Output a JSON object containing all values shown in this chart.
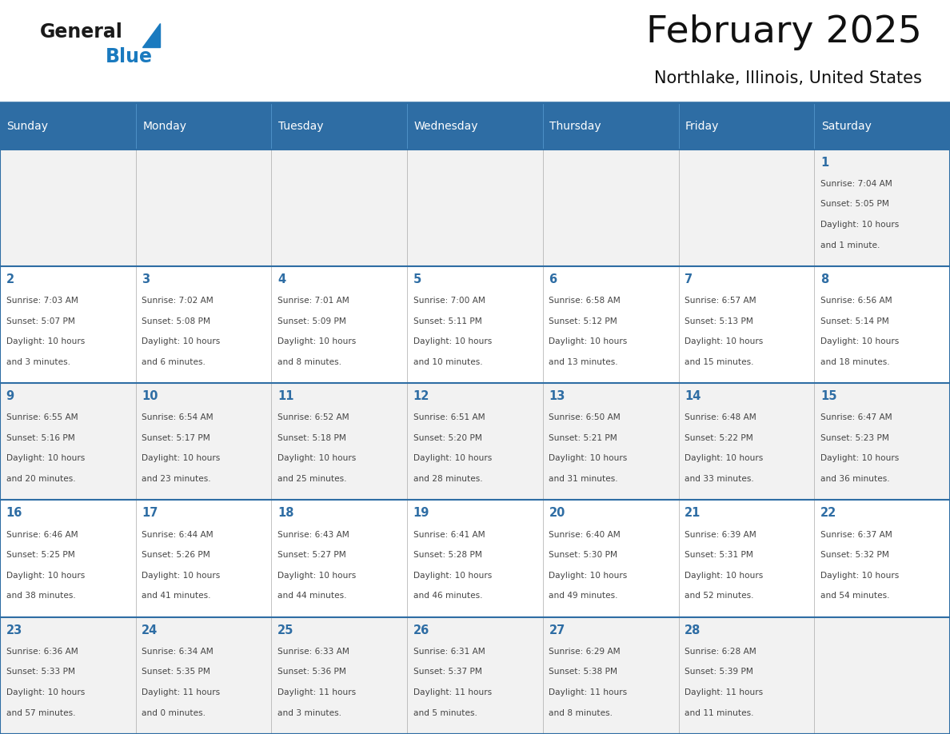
{
  "title": "February 2025",
  "subtitle": "Northlake, Illinois, United States",
  "header_bg": "#2E6DA4",
  "header_text_color": "#FFFFFF",
  "cell_bg_odd": "#F2F2F2",
  "cell_bg_even": "#FFFFFF",
  "day_number_color": "#2E6DA4",
  "info_text_color": "#444444",
  "border_color": "#2E6DA4",
  "grid_line_color": "#AAAAAA",
  "days_of_week": [
    "Sunday",
    "Monday",
    "Tuesday",
    "Wednesday",
    "Thursday",
    "Friday",
    "Saturday"
  ],
  "weeks": [
    [
      {
        "day": "",
        "info": ""
      },
      {
        "day": "",
        "info": ""
      },
      {
        "day": "",
        "info": ""
      },
      {
        "day": "",
        "info": ""
      },
      {
        "day": "",
        "info": ""
      },
      {
        "day": "",
        "info": ""
      },
      {
        "day": "1",
        "info": "Sunrise: 7:04 AM\nSunset: 5:05 PM\nDaylight: 10 hours\nand 1 minute."
      }
    ],
    [
      {
        "day": "2",
        "info": "Sunrise: 7:03 AM\nSunset: 5:07 PM\nDaylight: 10 hours\nand 3 minutes."
      },
      {
        "day": "3",
        "info": "Sunrise: 7:02 AM\nSunset: 5:08 PM\nDaylight: 10 hours\nand 6 minutes."
      },
      {
        "day": "4",
        "info": "Sunrise: 7:01 AM\nSunset: 5:09 PM\nDaylight: 10 hours\nand 8 minutes."
      },
      {
        "day": "5",
        "info": "Sunrise: 7:00 AM\nSunset: 5:11 PM\nDaylight: 10 hours\nand 10 minutes."
      },
      {
        "day": "6",
        "info": "Sunrise: 6:58 AM\nSunset: 5:12 PM\nDaylight: 10 hours\nand 13 minutes."
      },
      {
        "day": "7",
        "info": "Sunrise: 6:57 AM\nSunset: 5:13 PM\nDaylight: 10 hours\nand 15 minutes."
      },
      {
        "day": "8",
        "info": "Sunrise: 6:56 AM\nSunset: 5:14 PM\nDaylight: 10 hours\nand 18 minutes."
      }
    ],
    [
      {
        "day": "9",
        "info": "Sunrise: 6:55 AM\nSunset: 5:16 PM\nDaylight: 10 hours\nand 20 minutes."
      },
      {
        "day": "10",
        "info": "Sunrise: 6:54 AM\nSunset: 5:17 PM\nDaylight: 10 hours\nand 23 minutes."
      },
      {
        "day": "11",
        "info": "Sunrise: 6:52 AM\nSunset: 5:18 PM\nDaylight: 10 hours\nand 25 minutes."
      },
      {
        "day": "12",
        "info": "Sunrise: 6:51 AM\nSunset: 5:20 PM\nDaylight: 10 hours\nand 28 minutes."
      },
      {
        "day": "13",
        "info": "Sunrise: 6:50 AM\nSunset: 5:21 PM\nDaylight: 10 hours\nand 31 minutes."
      },
      {
        "day": "14",
        "info": "Sunrise: 6:48 AM\nSunset: 5:22 PM\nDaylight: 10 hours\nand 33 minutes."
      },
      {
        "day": "15",
        "info": "Sunrise: 6:47 AM\nSunset: 5:23 PM\nDaylight: 10 hours\nand 36 minutes."
      }
    ],
    [
      {
        "day": "16",
        "info": "Sunrise: 6:46 AM\nSunset: 5:25 PM\nDaylight: 10 hours\nand 38 minutes."
      },
      {
        "day": "17",
        "info": "Sunrise: 6:44 AM\nSunset: 5:26 PM\nDaylight: 10 hours\nand 41 minutes."
      },
      {
        "day": "18",
        "info": "Sunrise: 6:43 AM\nSunset: 5:27 PM\nDaylight: 10 hours\nand 44 minutes."
      },
      {
        "day": "19",
        "info": "Sunrise: 6:41 AM\nSunset: 5:28 PM\nDaylight: 10 hours\nand 46 minutes."
      },
      {
        "day": "20",
        "info": "Sunrise: 6:40 AM\nSunset: 5:30 PM\nDaylight: 10 hours\nand 49 minutes."
      },
      {
        "day": "21",
        "info": "Sunrise: 6:39 AM\nSunset: 5:31 PM\nDaylight: 10 hours\nand 52 minutes."
      },
      {
        "day": "22",
        "info": "Sunrise: 6:37 AM\nSunset: 5:32 PM\nDaylight: 10 hours\nand 54 minutes."
      }
    ],
    [
      {
        "day": "23",
        "info": "Sunrise: 6:36 AM\nSunset: 5:33 PM\nDaylight: 10 hours\nand 57 minutes."
      },
      {
        "day": "24",
        "info": "Sunrise: 6:34 AM\nSunset: 5:35 PM\nDaylight: 11 hours\nand 0 minutes."
      },
      {
        "day": "25",
        "info": "Sunrise: 6:33 AM\nSunset: 5:36 PM\nDaylight: 11 hours\nand 3 minutes."
      },
      {
        "day": "26",
        "info": "Sunrise: 6:31 AM\nSunset: 5:37 PM\nDaylight: 11 hours\nand 5 minutes."
      },
      {
        "day": "27",
        "info": "Sunrise: 6:29 AM\nSunset: 5:38 PM\nDaylight: 11 hours\nand 8 minutes."
      },
      {
        "day": "28",
        "info": "Sunrise: 6:28 AM\nSunset: 5:39 PM\nDaylight: 11 hours\nand 11 minutes."
      },
      {
        "day": "",
        "info": ""
      }
    ]
  ],
  "logo_general_color": "#1a1a1a",
  "logo_blue_color": "#1a7abf",
  "figsize": [
    11.88,
    9.18
  ],
  "dpi": 100
}
